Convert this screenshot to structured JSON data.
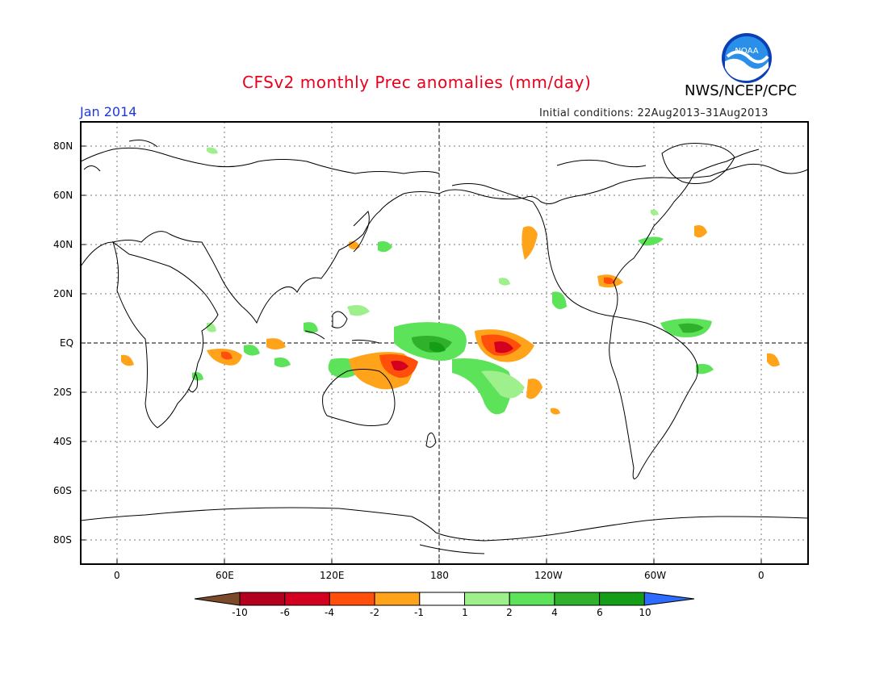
{
  "header": {
    "title": "CFSv2 monthly Prec anomalies (mm/day)",
    "month": "Jan 2014",
    "initial_conditions": "Initial conditions: 22Aug2013–31Aug2013",
    "agency": "NWS/NCEP/CPC",
    "logo_text": "NOAA"
  },
  "map": {
    "lat_labels": [
      "80N",
      "60N",
      "40N",
      "20N",
      "EQ",
      "20S",
      "40S",
      "60S",
      "80S"
    ],
    "lon_labels": [
      "0",
      "60E",
      "120E",
      "180",
      "120W",
      "60W",
      "0"
    ]
  },
  "colorbar": {
    "labels": [
      "-10",
      "-6",
      "-4",
      "-2",
      "-1",
      "1",
      "2",
      "4",
      "6",
      "10"
    ],
    "colors": [
      "#7b4a2a",
      "#b2001e",
      "#d3001f",
      "#ff4f0a",
      "#ffa31a",
      "#ffffff",
      "#9ef08c",
      "#5de35a",
      "#2fb12c",
      "#149e18",
      "#2e6bff"
    ]
  }
}
